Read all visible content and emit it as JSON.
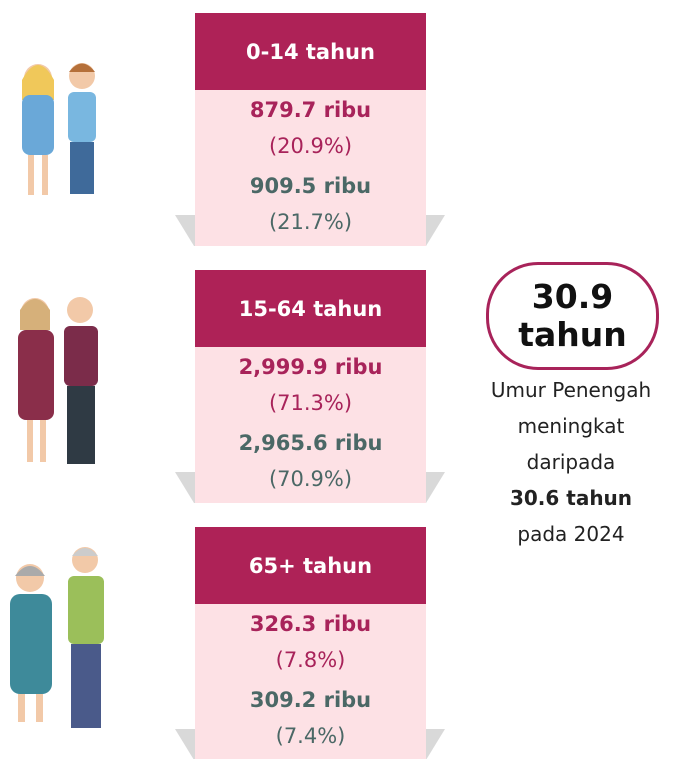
{
  "groups": [
    {
      "label": "0-14 tahun",
      "rows": [
        {
          "value": "879.7 ribu",
          "percent": "(20.9%)"
        },
        {
          "value": "909.5 ribu",
          "percent": "(21.7%)"
        }
      ]
    },
    {
      "label": "15-64 tahun",
      "rows": [
        {
          "value": "2,999.9 ribu",
          "percent": "(71.3%)"
        },
        {
          "value": "2,965.6 ribu",
          "percent": "(70.9%)"
        }
      ]
    },
    {
      "label": "65+ tahun",
      "rows": [
        {
          "value": "326.3 ribu",
          "percent": "(7.8%)"
        },
        {
          "value": "309.2 ribu",
          "percent": "(7.4%)"
        }
      ]
    }
  ],
  "median": {
    "value": "30.9",
    "unit": "tahun"
  },
  "note": [
    "Umur Penengah",
    "meningkat",
    "daripada",
    "30.6 tahun",
    "pada 2024"
  ]
}
